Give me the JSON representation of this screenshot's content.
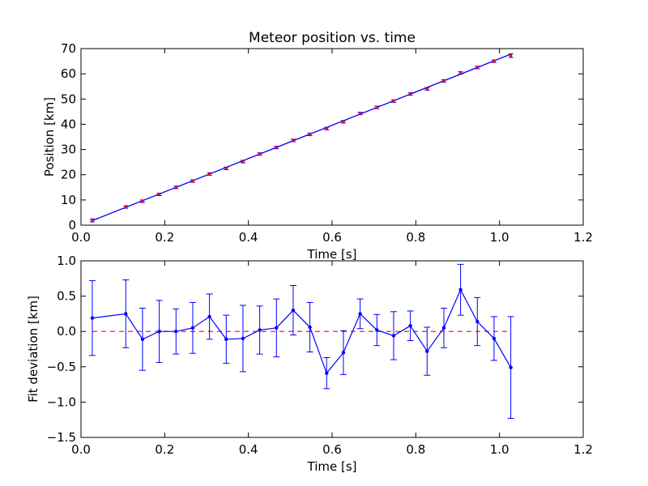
{
  "chart_data": [
    {
      "type": "line",
      "title": "Meteor position vs. time",
      "xlabel": "Time [s]",
      "ylabel": "Position [km]",
      "xlim": [
        0.0,
        1.2
      ],
      "ylim": [
        0,
        70
      ],
      "xticks": [
        "0.0",
        "0.2",
        "0.4",
        "0.6",
        "0.8",
        "1.0",
        "1.2"
      ],
      "yticks": [
        "0",
        "10",
        "20",
        "30",
        "40",
        "50",
        "60",
        "70"
      ],
      "grid": false,
      "colors": {
        "fit": "#0000ff",
        "points": "#ff0000",
        "errorbars": "#0000ff"
      },
      "series": [
        {
          "marker": "errorbar",
          "x": [
            0.027,
            0.107,
            0.147,
            0.187,
            0.227,
            0.267,
            0.307,
            0.347,
            0.387,
            0.427,
            0.467,
            0.507,
            0.547,
            0.587,
            0.627,
            0.667,
            0.707,
            0.747,
            0.787,
            0.827,
            0.867,
            0.907,
            0.947,
            0.987,
            1.027
          ],
          "y": [
            1.9,
            7.2,
            9.5,
            12.2,
            15.0,
            17.5,
            20.3,
            22.5,
            25.2,
            28.2,
            30.8,
            33.6,
            36.0,
            38.3,
            41.0,
            44.3,
            46.7,
            49.2,
            52.0,
            54.0,
            57.2,
            60.4,
            62.5,
            65.0,
            67.2
          ],
          "yerr": [
            0.6,
            0.5,
            0.5,
            0.5,
            0.5,
            0.5,
            0.5,
            0.5,
            0.5,
            0.5,
            0.5,
            0.5,
            0.5,
            0.5,
            0.5,
            0.5,
            0.5,
            0.5,
            0.5,
            0.5,
            0.5,
            0.5,
            0.5,
            0.5,
            0.7
          ]
        },
        {
          "marker": "line",
          "x": [
            0.027,
            1.027
          ],
          "y": [
            1.8,
            67.8
          ]
        }
      ]
    },
    {
      "type": "line",
      "title": "",
      "xlabel": "Time [s]",
      "ylabel": "Fit deviation [km]",
      "xlim": [
        0.0,
        1.2
      ],
      "ylim": [
        -1.5,
        1.0
      ],
      "xticks": [
        "0.0",
        "0.2",
        "0.4",
        "0.6",
        "0.8",
        "1.0",
        "1.2"
      ],
      "yticks": [
        "−1.5",
        "−1.0",
        "−0.5",
        "0.0",
        "0.5",
        "1.0"
      ],
      "grid": false,
      "colors": {
        "deviation": "#0000ff",
        "zero_line": "#ff0000"
      },
      "reference_line": {
        "y": 0.0,
        "style": "dashed",
        "x_range": [
          0.027,
          1.027
        ]
      },
      "series": [
        {
          "marker": "errorbar-line",
          "x": [
            0.027,
            0.107,
            0.147,
            0.187,
            0.227,
            0.267,
            0.307,
            0.347,
            0.387,
            0.427,
            0.467,
            0.507,
            0.547,
            0.587,
            0.627,
            0.667,
            0.707,
            0.747,
            0.787,
            0.827,
            0.867,
            0.907,
            0.947,
            0.987,
            1.027
          ],
          "y": [
            0.19,
            0.25,
            -0.11,
            0.0,
            0.0,
            0.05,
            0.21,
            -0.11,
            -0.1,
            0.02,
            0.05,
            0.3,
            0.06,
            -0.59,
            -0.3,
            0.25,
            0.02,
            -0.06,
            0.08,
            -0.28,
            0.05,
            0.59,
            0.14,
            -0.1,
            -0.51
          ],
          "yerr": [
            0.53,
            0.48,
            0.44,
            0.44,
            0.32,
            0.36,
            0.32,
            0.34,
            0.47,
            0.34,
            0.41,
            0.35,
            0.35,
            0.22,
            0.31,
            0.21,
            0.22,
            0.34,
            0.21,
            0.34,
            0.28,
            0.36,
            0.34,
            0.31,
            0.72
          ]
        }
      ]
    }
  ]
}
